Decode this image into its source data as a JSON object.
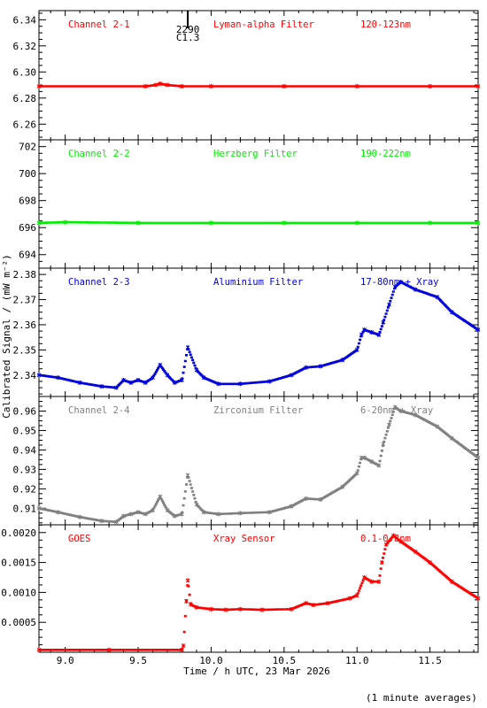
{
  "figure": {
    "ylabel": "Calibrated Signal / (mW m⁻²)",
    "xlabel": "Time / h UTC, 23 Mar 2026",
    "note": "(1 minute averages)",
    "flare_marker": {
      "x": 9.84,
      "labels": [
        "2290",
        "C1.3"
      ]
    }
  },
  "chart_data": [
    {
      "type": "scatter",
      "channel": "Channel 2-1",
      "filter": "Lyman-alpha Filter",
      "band": "120-123nm",
      "color": "#ff0000",
      "xlim": [
        8.82,
        11.83
      ],
      "ylim": [
        6.248,
        6.347
      ],
      "yticks": [
        6.26,
        6.28,
        6.3,
        6.32,
        6.34
      ],
      "ytick_labels": [
        "6.26",
        "6.28",
        "6.30",
        "6.32",
        "6.34"
      ],
      "series": [
        {
          "x": [
            8.82,
            9.55,
            9.62,
            9.65,
            9.7,
            9.8,
            10.0,
            10.5,
            11.0,
            11.5,
            11.83
          ],
          "y": [
            6.289,
            6.289,
            6.29,
            6.291,
            6.29,
            6.289,
            6.289,
            6.289,
            6.289,
            6.289,
            6.289
          ]
        }
      ]
    },
    {
      "type": "scatter",
      "channel": "Channel 2-2",
      "filter": "Herzberg Filter",
      "band": "190-222nm",
      "color": "#00ee00",
      "xlim": [
        8.82,
        11.83
      ],
      "ylim": [
        693.0,
        702.5
      ],
      "yticks": [
        694,
        696,
        698,
        700,
        702
      ],
      "ytick_labels": [
        "694",
        "696",
        "698",
        "700",
        "702"
      ],
      "series": [
        {
          "x": [
            8.82,
            9.0,
            9.5,
            10.0,
            10.5,
            11.0,
            11.5,
            11.83
          ],
          "y": [
            696.35,
            696.4,
            696.35,
            696.35,
            696.35,
            696.35,
            696.35,
            696.35
          ]
        }
      ]
    },
    {
      "type": "scatter",
      "channel": "Channel 2-3",
      "filter": "Aluminium Filter",
      "band": "17-80nm + Xray",
      "color": "#0000dd",
      "xlim": [
        8.82,
        11.83
      ],
      "ylim": [
        2.3315,
        2.3825
      ],
      "yticks": [
        2.34,
        2.35,
        2.36,
        2.37,
        2.38
      ],
      "ytick_labels": [
        "2.34",
        "2.35",
        "2.36",
        "2.37",
        "2.38"
      ],
      "series": [
        {
          "x": [
            8.82,
            8.95,
            9.1,
            9.25,
            9.35,
            9.4,
            9.45,
            9.5,
            9.55,
            9.6,
            9.65,
            9.7,
            9.75,
            9.8,
            9.84,
            9.9,
            9.95,
            10.05,
            10.2,
            10.4,
            10.55,
            10.65,
            10.75,
            10.9,
            11.0,
            11.03,
            11.05,
            11.1,
            11.15,
            11.18,
            11.22,
            11.26,
            11.3,
            11.4,
            11.55,
            11.65,
            11.83
          ],
          "y": [
            2.34,
            2.339,
            2.337,
            2.3355,
            2.335,
            2.338,
            2.337,
            2.338,
            2.337,
            2.339,
            2.344,
            2.34,
            2.337,
            2.338,
            2.351,
            2.342,
            2.339,
            2.3365,
            2.3365,
            2.3375,
            2.34,
            2.343,
            2.3435,
            2.346,
            2.35,
            2.356,
            2.358,
            2.357,
            2.356,
            2.361,
            2.368,
            2.375,
            2.377,
            2.374,
            2.371,
            2.365,
            2.358
          ]
        }
      ]
    },
    {
      "type": "scatter",
      "channel": "Channel 2-4",
      "filter": "Zirconium Filter",
      "band": "6-20nm + Xray",
      "color": "#808080",
      "xlim": [
        8.82,
        11.83
      ],
      "ylim": [
        0.9015,
        0.9675
      ],
      "yticks": [
        0.91,
        0.92,
        0.93,
        0.94,
        0.95,
        0.96
      ],
      "ytick_labels": [
        "0.91",
        "0.92",
        "0.93",
        "0.94",
        "0.95",
        "0.96"
      ],
      "series": [
        {
          "x": [
            8.82,
            8.95,
            9.1,
            9.25,
            9.35,
            9.4,
            9.45,
            9.5,
            9.55,
            9.6,
            9.65,
            9.7,
            9.75,
            9.8,
            9.84,
            9.9,
            9.95,
            10.05,
            10.2,
            10.4,
            10.55,
            10.65,
            10.75,
            10.9,
            11.0,
            11.03,
            11.05,
            11.1,
            11.15,
            11.18,
            11.22,
            11.26,
            11.3,
            11.4,
            11.55,
            11.65,
            11.83
          ],
          "y": [
            0.91,
            0.908,
            0.9055,
            0.9035,
            0.903,
            0.906,
            0.907,
            0.908,
            0.907,
            0.909,
            0.916,
            0.909,
            0.906,
            0.907,
            0.927,
            0.912,
            0.908,
            0.907,
            0.9075,
            0.908,
            0.911,
            0.915,
            0.9145,
            0.921,
            0.928,
            0.936,
            0.936,
            0.934,
            0.932,
            0.943,
            0.953,
            0.962,
            0.96,
            0.958,
            0.952,
            0.946,
            0.936
          ]
        }
      ]
    },
    {
      "type": "scatter",
      "channel": "GOES",
      "filter": "Xray Sensor",
      "band": "0.1-0.8nm",
      "color": "#ff0000",
      "xlim": [
        8.82,
        11.83
      ],
      "ylim": [
        0.0,
        0.00213
      ],
      "yticks": [
        0.0005,
        0.001,
        0.0015,
        0.002
      ],
      "ytick_labels": [
        "0.0005",
        "0.0010",
        "0.0015",
        "0.0020"
      ],
      "series": [
        {
          "x": [
            8.82,
            9.3,
            9.8,
            9.81,
            9.83,
            9.84,
            9.86,
            9.9,
            10.0,
            10.1,
            10.2,
            10.35,
            10.55,
            10.65,
            10.7,
            10.8,
            10.95,
            11.0,
            11.05,
            11.1,
            11.15,
            11.17,
            11.2,
            11.25,
            11.3,
            11.4,
            11.5,
            11.65,
            11.83
          ],
          "y": [
            4e-05,
            4e-05,
            4e-05,
            0.00011,
            0.00085,
            0.0012,
            0.0008,
            0.00075,
            0.00072,
            0.00071,
            0.00072,
            0.00071,
            0.00072,
            0.00082,
            0.00079,
            0.00082,
            0.0009,
            0.00095,
            0.00125,
            0.00118,
            0.00118,
            0.0015,
            0.0018,
            0.00195,
            0.00185,
            0.00168,
            0.0015,
            0.00118,
            0.0009
          ]
        }
      ]
    }
  ],
  "xaxis": {
    "xlim": [
      8.82,
      11.83
    ],
    "ticks": [
      9.0,
      9.5,
      10.0,
      10.5,
      11.0,
      11.5
    ],
    "tick_labels": [
      "9.0",
      "9.5",
      "10.0",
      "10.5",
      "11.0",
      "11.5"
    ]
  }
}
